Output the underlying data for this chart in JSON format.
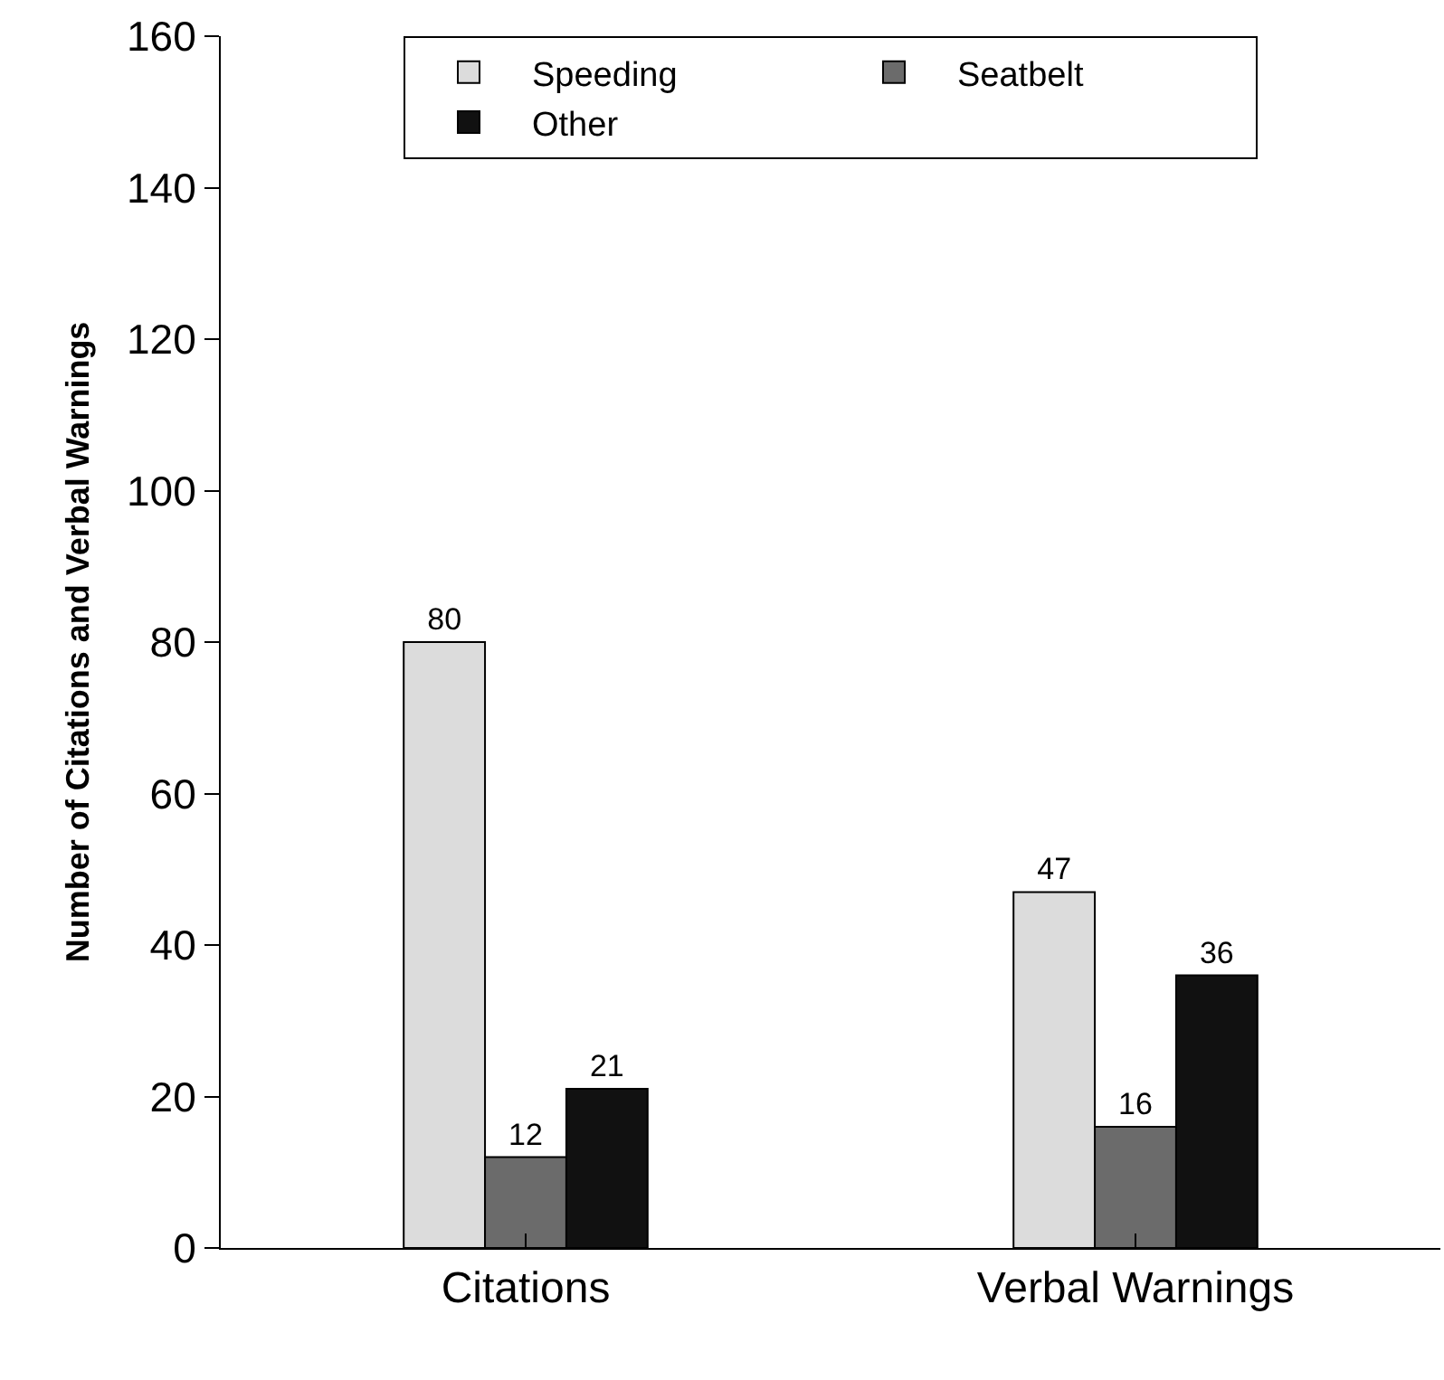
{
  "chart_data": {
    "type": "bar",
    "ylabel": "Number of Citations and Verbal Warnings",
    "categories": [
      "Citations",
      "Verbal Warnings"
    ],
    "series": [
      {
        "name": "Speeding",
        "color": "#dcdcdc",
        "values": [
          80,
          47
        ]
      },
      {
        "name": "Seatbelt",
        "color": "#6b6b6b",
        "values": [
          12,
          16
        ]
      },
      {
        "name": "Other",
        "color": "#111111",
        "values": [
          21,
          36
        ]
      }
    ],
    "ylim": [
      0,
      160
    ],
    "yticks": [
      0,
      20,
      40,
      60,
      80,
      100,
      120,
      140,
      160
    ],
    "data_labels": true,
    "legend": "top"
  }
}
